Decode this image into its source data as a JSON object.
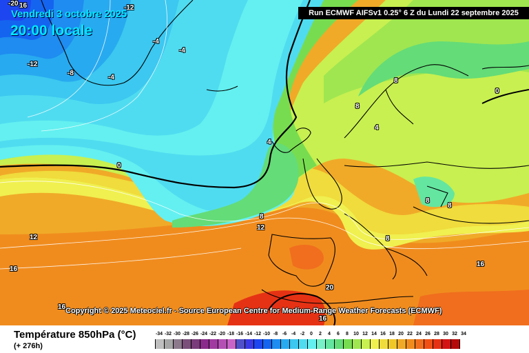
{
  "header": {
    "date": "Vendredi 3 octobre 2025",
    "time": "20:00 locale",
    "run": "Run ECMWF AIFSv1 0.25° 6 Z du Lundi 22 septembre 2025"
  },
  "map": {
    "copyright": "Copyright © 2025 Meteociel.fr - Source European Centre for Medium-Range Weather Forecasts (ECMWF)",
    "isotherm_labels": [
      "-20",
      "16",
      "-12",
      "-4",
      "-4",
      "-12",
      "-8",
      "-4",
      "0",
      "8",
      "8",
      "4",
      "4",
      "0",
      "8",
      "8",
      "8",
      "12",
      "12",
      "8",
      "16",
      "16",
      "20",
      "16",
      "16"
    ]
  },
  "footer": {
    "title": "Température 850hPa (°C)",
    "lead": "(+ 276h)"
  },
  "scale": {
    "ticks": [
      "-34",
      "-32",
      "-30",
      "-28",
      "-26",
      "-24",
      "-22",
      "-20",
      "-18",
      "-16",
      "-14",
      "-12",
      "-10",
      "-8",
      "-6",
      "-4",
      "-2",
      "0",
      "2",
      "4",
      "6",
      "8",
      "10",
      "12",
      "14",
      "16",
      "18",
      "20",
      "22",
      "24",
      "26",
      "28",
      "30",
      "32",
      "34"
    ],
    "colors": [
      "#bfbfbf",
      "#a6a6a6",
      "#8c7a8c",
      "#7a4f7a",
      "#7a3c7a",
      "#8a2a8a",
      "#a03aa0",
      "#b44fb4",
      "#c864c8",
      "#5050c8",
      "#3a3ae6",
      "#1e46f0",
      "#1464f0",
      "#1e8cf0",
      "#28aaf0",
      "#3cc8f0",
      "#50dcf0",
      "#64f0f0",
      "#78f0c8",
      "#64e6a0",
      "#64dc78",
      "#78dc50",
      "#a0e650",
      "#c8f050",
      "#f0f050",
      "#f0dc3c",
      "#f0c828",
      "#f0aa28",
      "#f08c1e",
      "#f06e1e",
      "#f05014",
      "#e63214",
      "#d21414",
      "#b40a0a"
    ]
  },
  "colors": {
    "header_text": "#00e8ff",
    "run_bg": "#000000"
  }
}
